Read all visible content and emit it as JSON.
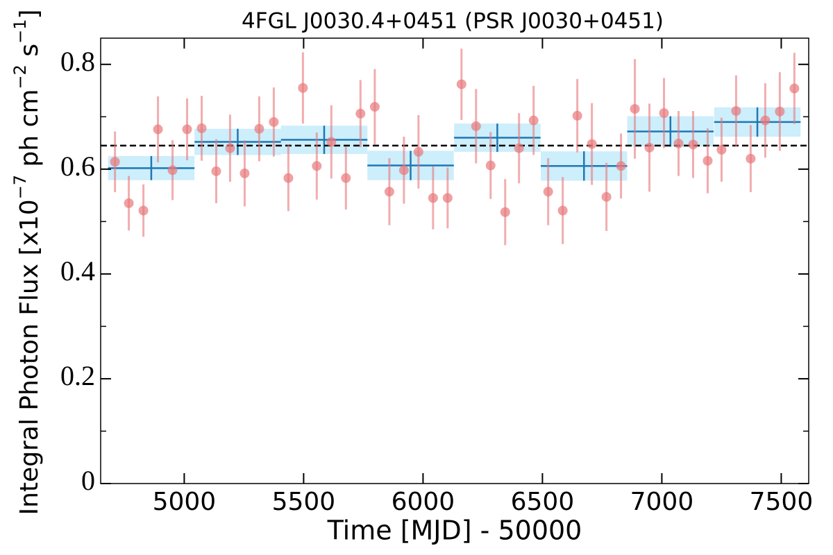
{
  "chart_data": {
    "type": "errorbar",
    "title": "4FGL J0030.4+0451 (PSR J0030+0451)",
    "xlabel": "Time [MJD] - 50000",
    "ylabel_parts": [
      "Integral Photon Flux [x10",
      "−7",
      " ph cm",
      "−2",
      " s",
      "−1",
      "]"
    ],
    "xlim": [
      4650,
      7615
    ],
    "ylim": [
      0,
      0.85
    ],
    "xticks": [
      5000,
      5500,
      6000,
      6500,
      7000,
      7500
    ],
    "yticks": [
      0,
      0.2,
      0.4,
      0.6,
      0.8
    ],
    "yticks_minor": [
      0.1,
      0.3,
      0.5,
      0.7
    ],
    "reference_line": 0.645,
    "points": {
      "color": "#e8777a",
      "x": [
        4710,
        4768,
        4829,
        4890,
        4951,
        5012,
        5073,
        5134,
        5192,
        5253,
        5314,
        5375,
        5436,
        5497,
        5555,
        5616,
        5677,
        5738,
        5798,
        5859,
        5920,
        5981,
        6042,
        6103,
        6161,
        6222,
        6283,
        6344,
        6402,
        6463,
        6524,
        6585,
        6646,
        6707,
        6768,
        6829,
        6887,
        6948,
        7009,
        7070,
        7131,
        7192,
        7250,
        7311,
        7372,
        7433,
        7494,
        7555
      ],
      "values": [
        0.614,
        0.535,
        0.521,
        0.676,
        0.598,
        0.676,
        0.678,
        0.596,
        0.64,
        0.592,
        0.677,
        0.69,
        0.583,
        0.755,
        0.606,
        0.652,
        0.583,
        0.706,
        0.719,
        0.557,
        0.598,
        0.633,
        0.545,
        0.545,
        0.762,
        0.682,
        0.607,
        0.518,
        0.64,
        0.693,
        0.557,
        0.521,
        0.702,
        0.648,
        0.547,
        0.606,
        0.715,
        0.641,
        0.707,
        0.649,
        0.647,
        0.616,
        0.637,
        0.711,
        0.62,
        0.693,
        0.71,
        0.754
      ],
      "errors": [
        0.058,
        0.052,
        0.05,
        0.063,
        0.057,
        0.059,
        0.062,
        0.061,
        0.064,
        0.063,
        0.062,
        0.066,
        0.063,
        0.068,
        0.064,
        0.07,
        0.06,
        0.064,
        0.072,
        0.064,
        0.064,
        0.07,
        0.06,
        0.058,
        0.068,
        0.071,
        0.064,
        0.063,
        0.067,
        0.066,
        0.064,
        0.064,
        0.07,
        0.078,
        0.065,
        0.062,
        0.095,
        0.084,
        0.067,
        0.062,
        0.064,
        0.062,
        0.061,
        0.068,
        0.064,
        0.071,
        0.075,
        0.068
      ]
    },
    "bins": {
      "color": "#1f77b4",
      "band_color": "#cdeefb",
      "x": [
        4862,
        5224,
        5586,
        5948,
        6311,
        6674,
        7036,
        7400
      ],
      "xerr": [
        181,
        181,
        181,
        181,
        181,
        181,
        181,
        181
      ],
      "values": [
        0.602,
        0.652,
        0.656,
        0.607,
        0.66,
        0.606,
        0.672,
        0.69
      ],
      "yerr": [
        0.023,
        0.025,
        0.027,
        0.028,
        0.027,
        0.028,
        0.029,
        0.028
      ]
    }
  }
}
